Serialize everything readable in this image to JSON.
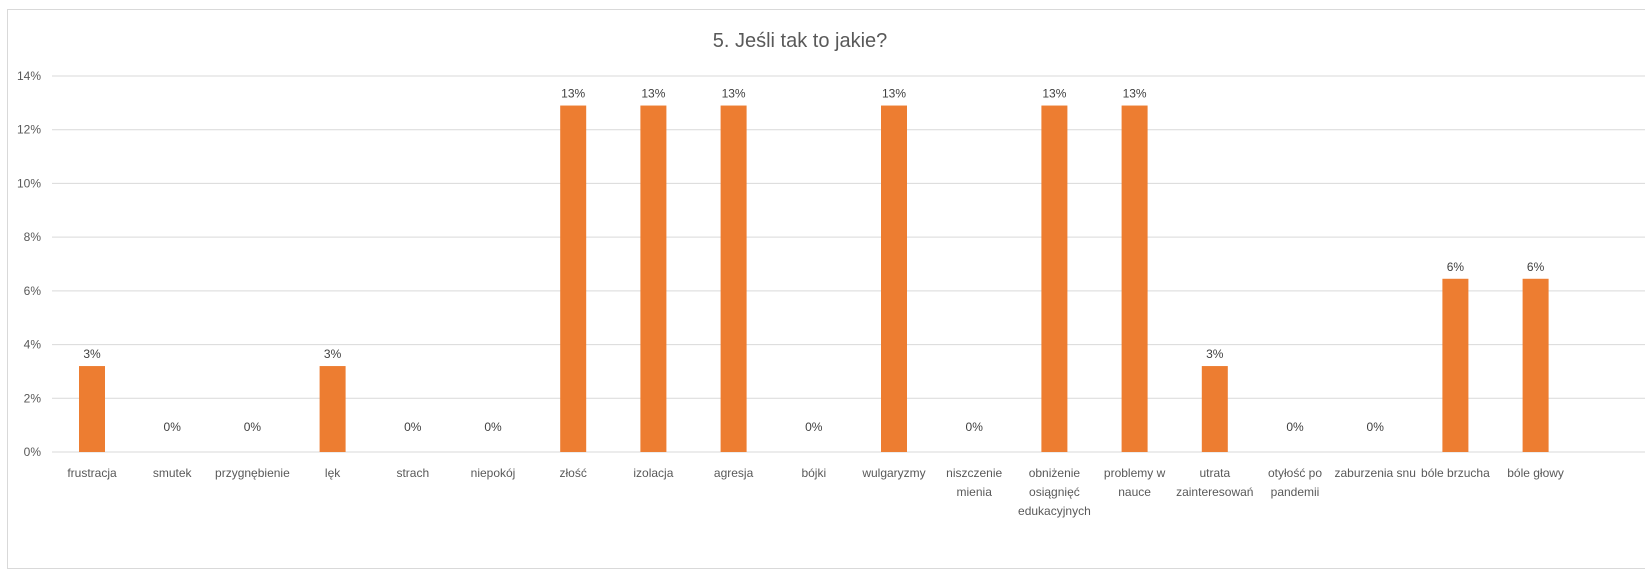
{
  "chart_data": {
    "type": "bar",
    "title": "5. Jeśli tak to jakie?",
    "xlabel": "",
    "ylabel": "",
    "ylim": [
      0,
      14
    ],
    "y_ticks": [
      "0%",
      "2%",
      "4%",
      "6%",
      "8%",
      "10%",
      "12%",
      "14%"
    ],
    "grid": true,
    "legend": "none",
    "bar_color": "#ED7D31",
    "categories": [
      [
        "frustracja"
      ],
      [
        "smutek"
      ],
      [
        "przygnębienie"
      ],
      [
        "lęk"
      ],
      [
        "strach"
      ],
      [
        "niepokój"
      ],
      [
        "złość"
      ],
      [
        "izolacja"
      ],
      [
        "agresja"
      ],
      [
        "bójki"
      ],
      [
        "wulgaryzmy"
      ],
      [
        "niszczenie",
        "mienia"
      ],
      [
        "obniżenie",
        "osiągnięć",
        "edukacyjnych"
      ],
      [
        "problemy w",
        "nauce"
      ],
      [
        "utrata",
        "zainteresowań"
      ],
      [
        "otyłość po",
        "pandemii"
      ],
      [
        "zaburzenia snu"
      ],
      [
        "bóle brzucha"
      ],
      [
        "bóle głowy"
      ]
    ],
    "values": [
      3.2,
      0,
      0,
      3.2,
      0,
      0,
      12.9,
      12.9,
      12.9,
      0,
      12.9,
      0,
      12.9,
      12.9,
      3.2,
      0,
      0,
      6.45,
      6.45
    ],
    "data_labels": [
      "3%",
      "0%",
      "0%",
      "3%",
      "0%",
      "0%",
      "13%",
      "13%",
      "13%",
      "0%",
      "13%",
      "0%",
      "13%",
      "13%",
      "3%",
      "0%",
      "0%",
      "6%",
      "6%"
    ]
  }
}
